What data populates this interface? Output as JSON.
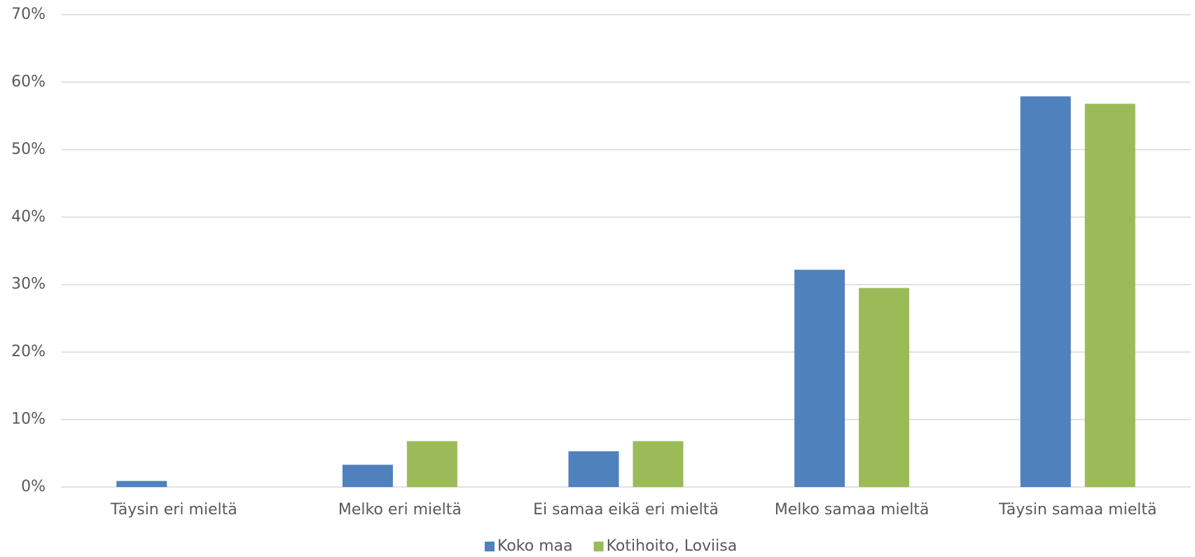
{
  "chart_data": {
    "type": "bar",
    "categories": [
      "Täysin eri mieltä",
      "Melko eri mieltä",
      "Ei samaa eikä eri mieltä",
      "Melko samaa mieltä",
      "Täysin samaa mieltä"
    ],
    "series": [
      {
        "name": "Koko maa",
        "color": "#4f81bd",
        "values": [
          0.9,
          3.3,
          5.3,
          32.2,
          57.9
        ]
      },
      {
        "name": "Kotihoito, Loviisa",
        "color": "#9bbb59",
        "values": [
          0,
          6.8,
          6.8,
          29.5,
          56.8
        ]
      }
    ],
    "ylim": [
      0,
      70
    ],
    "yticks": [
      {
        "value": 0,
        "label": "0%"
      },
      {
        "value": 10,
        "label": "10%"
      },
      {
        "value": 20,
        "label": "20%"
      },
      {
        "value": 30,
        "label": "30%"
      },
      {
        "value": 40,
        "label": "40%"
      },
      {
        "value": 50,
        "label": "50%"
      },
      {
        "value": 60,
        "label": "60%"
      },
      {
        "value": 70,
        "label": "70%"
      }
    ],
    "grid": true,
    "legend": "bottom"
  }
}
